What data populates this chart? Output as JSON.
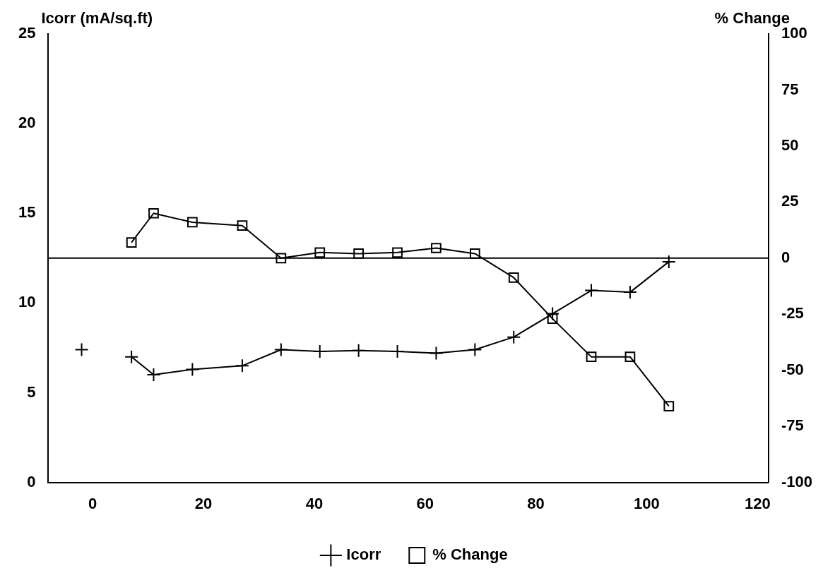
{
  "chart_data": {
    "type": "line",
    "ylabel": "Icorr (mA/sq.ft)",
    "y2label": "% Change",
    "xlim": [
      -8,
      122
    ],
    "xticks": [
      0,
      20,
      40,
      60,
      80,
      100,
      120
    ],
    "ylim": [
      0,
      25
    ],
    "yticks": [
      0,
      5,
      10,
      15,
      20,
      25
    ],
    "y2lim": [
      -100,
      100
    ],
    "y2ticks": [
      -100,
      -75,
      -50,
      -25,
      0,
      25,
      50,
      75,
      100
    ],
    "series": [
      {
        "name": "Icorr",
        "color": "#000000",
        "marker": "cross",
        "x": [
          -2,
          2,
          7,
          11,
          18,
          27,
          34,
          41,
          48,
          55,
          62,
          69,
          76,
          83,
          90,
          97,
          104
        ],
        "values": [
          7.4,
          null,
          7.0,
          6.0,
          6.3,
          6.5,
          7.4,
          7.3,
          7.35,
          7.3,
          7.2,
          7.4,
          8.1,
          9.4,
          10.7,
          10.6,
          12.3
        ]
      },
      {
        "name": "% Change",
        "color": "#000000",
        "marker": "square",
        "axis": "y2",
        "x": [
          7,
          11,
          18,
          27,
          34,
          41,
          48,
          55,
          62,
          69,
          76,
          83,
          90,
          97,
          104
        ],
        "values": [
          7,
          20,
          16,
          14.5,
          0,
          2.5,
          2,
          2.5,
          4.5,
          2,
          -8.7,
          -27,
          -44,
          -44,
          -66
        ]
      }
    ],
    "ref_lines": [
      {
        "axis": "y2",
        "value": 0,
        "color": "#000000"
      }
    ],
    "legend": "bottom",
    "grid": false
  }
}
